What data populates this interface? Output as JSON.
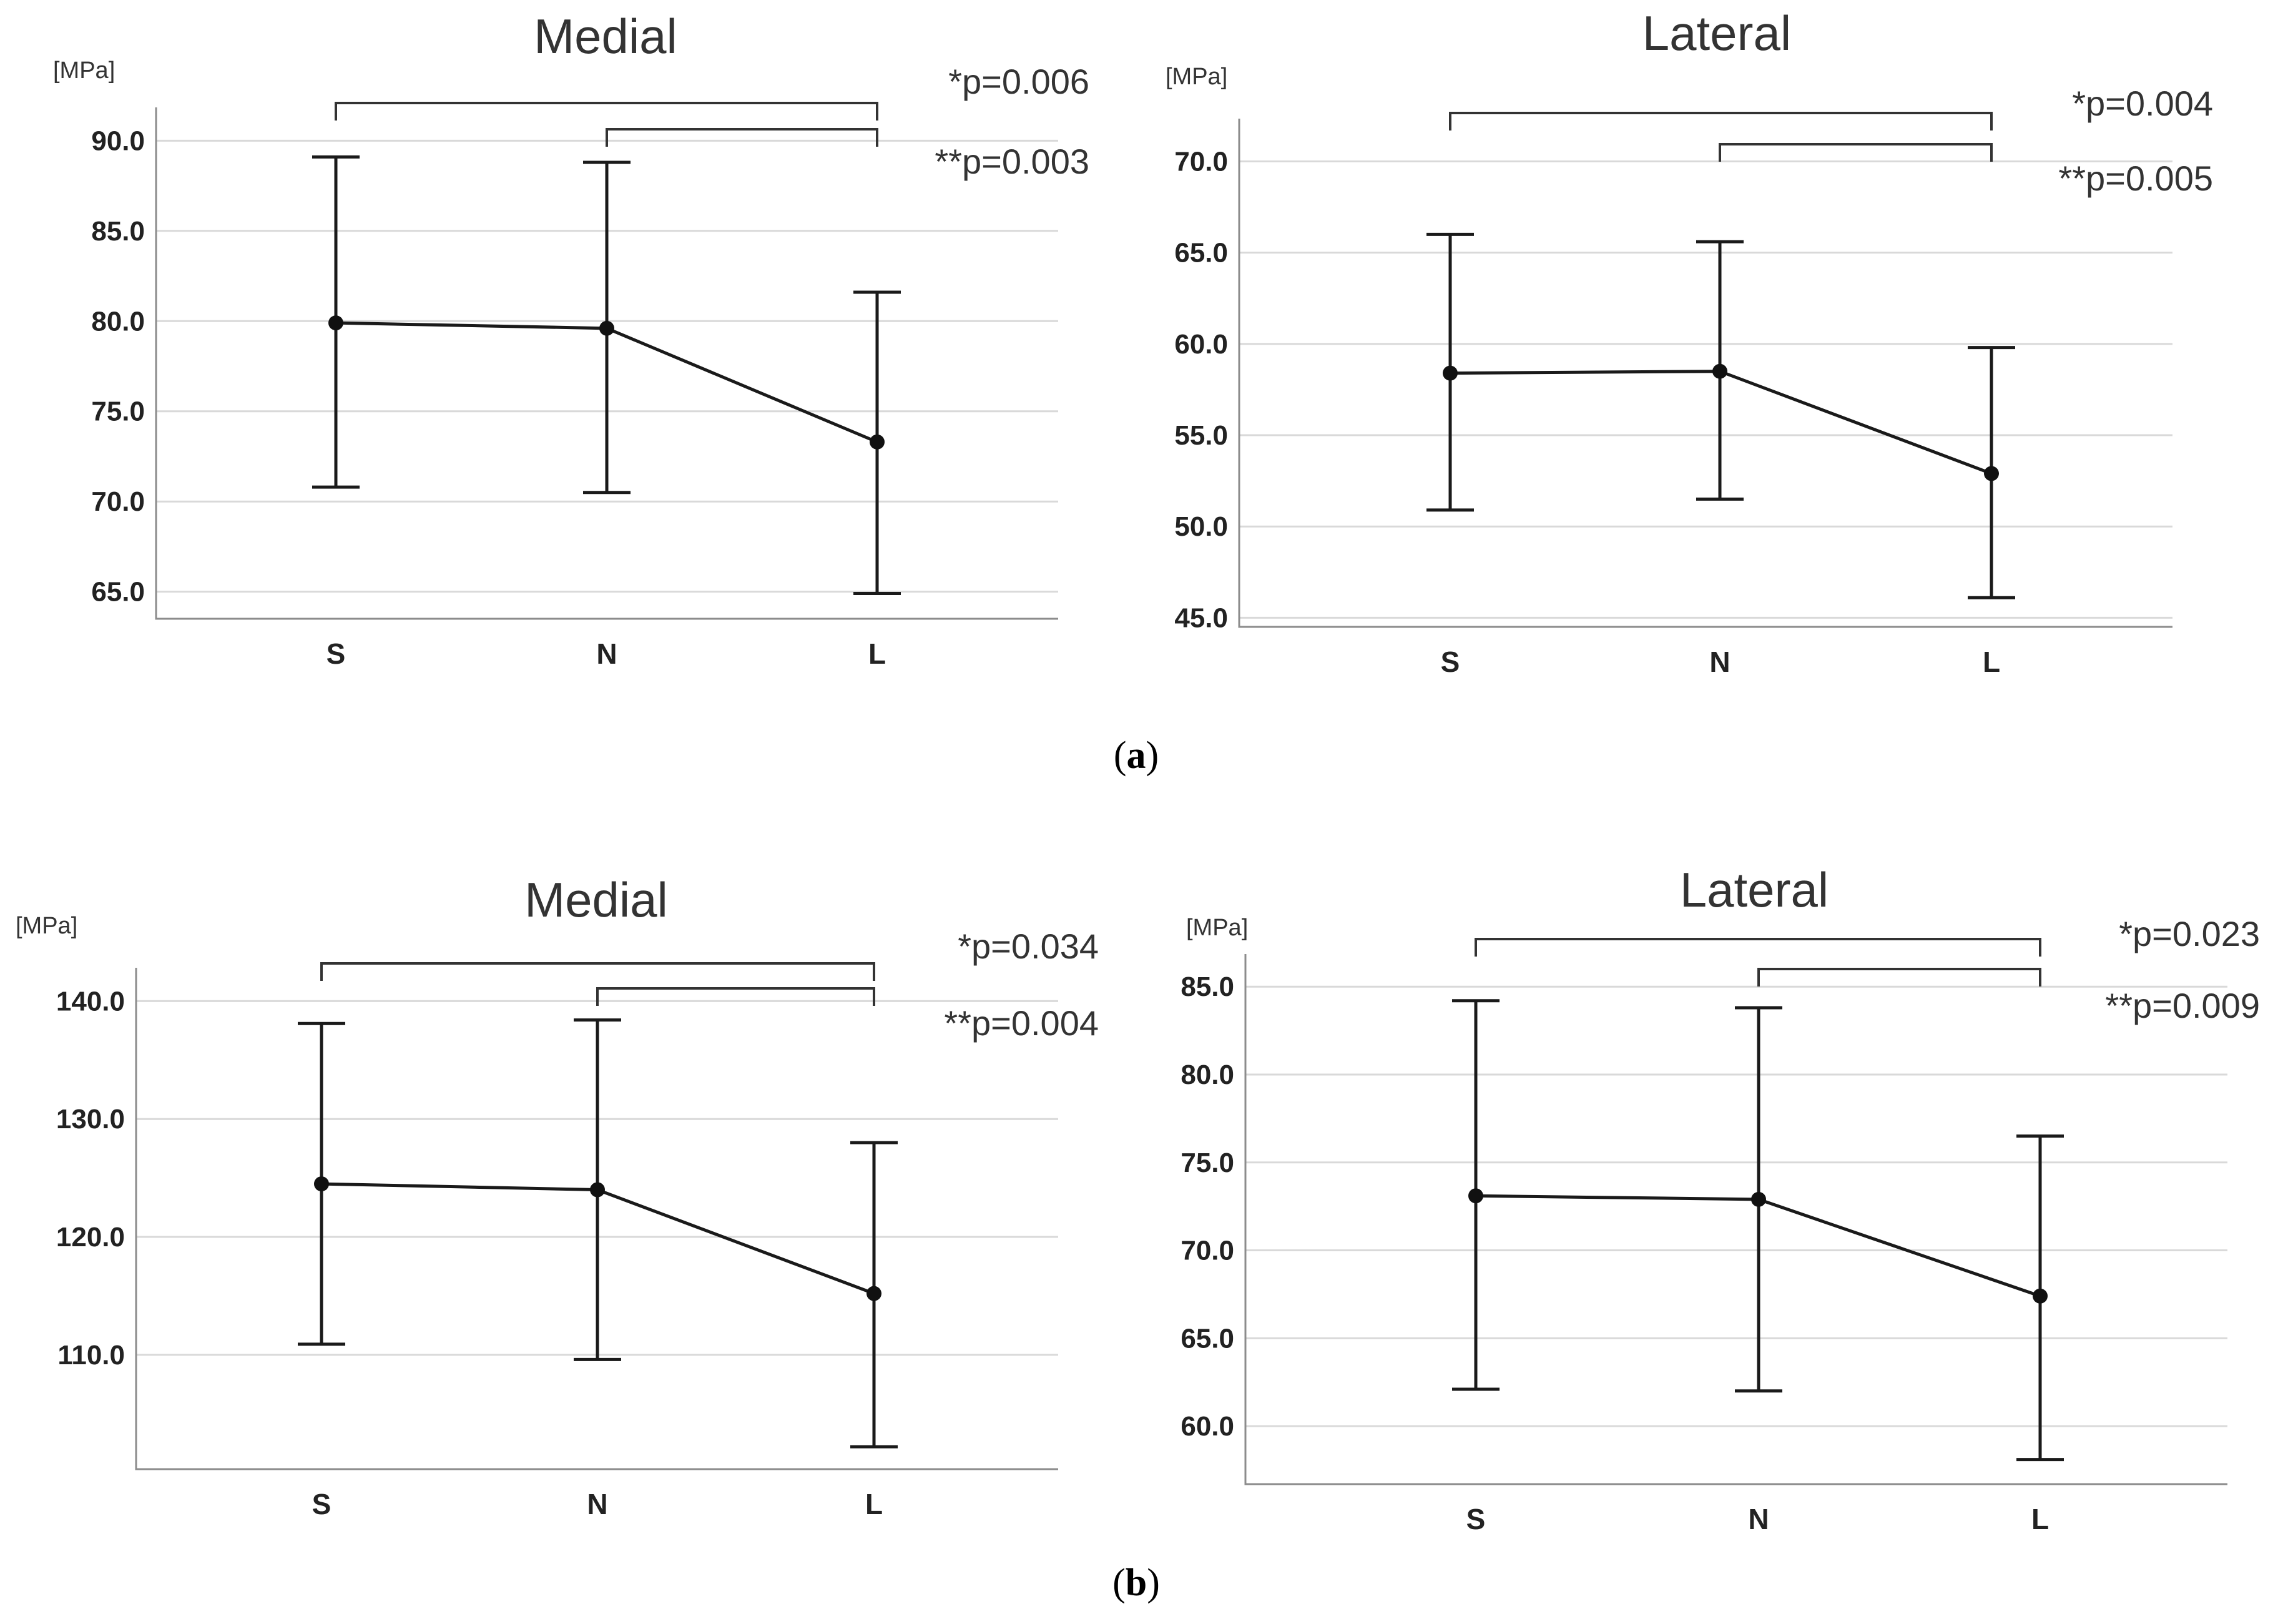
{
  "figure": {
    "caption_a": "a",
    "caption_b": "b"
  },
  "chart_data": [
    {
      "type": "line",
      "row": "a",
      "title": "Medial",
      "ylabel": "[MPa]",
      "categories": [
        "S",
        "N",
        "L"
      ],
      "means": [
        79.9,
        79.6,
        73.3
      ],
      "error_low": [
        70.8,
        70.5,
        64.9
      ],
      "error_high": [
        89.1,
        88.8,
        81.6
      ],
      "ylim": [
        63.5,
        91.5
      ],
      "yticks": [
        65.0,
        70.0,
        75.0,
        80.0,
        85.0,
        90.0
      ],
      "ytick_labels": [
        "65.0",
        "70.0",
        "75.0",
        "80.0",
        "85.0",
        "90.0"
      ],
      "significance": [
        {
          "from": "S",
          "to": "L",
          "label": "*p=0.006"
        },
        {
          "from": "N",
          "to": "L",
          "label": "**p=0.003"
        }
      ]
    },
    {
      "type": "line",
      "row": "a",
      "title": "Lateral",
      "ylabel": "[MPa]",
      "categories": [
        "S",
        "N",
        "L"
      ],
      "means": [
        58.4,
        58.5,
        52.9
      ],
      "error_low": [
        50.9,
        51.5,
        46.1
      ],
      "error_high": [
        66.0,
        65.6,
        59.8
      ],
      "ylim": [
        44.5,
        72.0
      ],
      "yticks": [
        45.0,
        50.0,
        55.0,
        60.0,
        65.0,
        70.0
      ],
      "ytick_labels": [
        "45.0",
        "50.0",
        "55.0",
        "60.0",
        "65.0",
        "70.0"
      ],
      "significance": [
        {
          "from": "S",
          "to": "L",
          "label": "*p=0.004"
        },
        {
          "from": "N",
          "to": "L",
          "label": "**p=0.005"
        }
      ]
    },
    {
      "type": "line",
      "row": "b",
      "title": "Medial",
      "ylabel": "[MPa]",
      "categories": [
        "S",
        "N",
        "L"
      ],
      "means": [
        124.5,
        124.0,
        115.2
      ],
      "error_low": [
        110.9,
        109.6,
        102.2
      ],
      "error_high": [
        138.1,
        138.4,
        128.0
      ],
      "ylim": [
        100.3,
        142.3
      ],
      "yticks": [
        110.0,
        120.0,
        130.0,
        140.0
      ],
      "ytick_labels": [
        "110.0",
        "120.0",
        "130.0",
        "140.0"
      ],
      "significance": [
        {
          "from": "S",
          "to": "L",
          "label": "*p=0.034"
        },
        {
          "from": "N",
          "to": "L",
          "label": "**p=0.004"
        }
      ]
    },
    {
      "type": "line",
      "row": "b",
      "title": "Lateral",
      "ylabel": "[MPa]",
      "categories": [
        "S",
        "N",
        "L"
      ],
      "means": [
        73.1,
        72.9,
        67.4
      ],
      "error_low": [
        62.1,
        62.0,
        58.1
      ],
      "error_high": [
        84.2,
        83.8,
        76.5
      ],
      "ylim": [
        56.7,
        86.5
      ],
      "yticks": [
        60.0,
        65.0,
        70.0,
        75.0,
        80.0,
        85.0
      ],
      "ytick_labels": [
        "60.0",
        "65.0",
        "70.0",
        "75.0",
        "80.0",
        "85.0"
      ],
      "significance": [
        {
          "from": "S",
          "to": "L",
          "label": "*p=0.023"
        },
        {
          "from": "N",
          "to": "L",
          "label": "**p=0.009"
        }
      ]
    }
  ]
}
